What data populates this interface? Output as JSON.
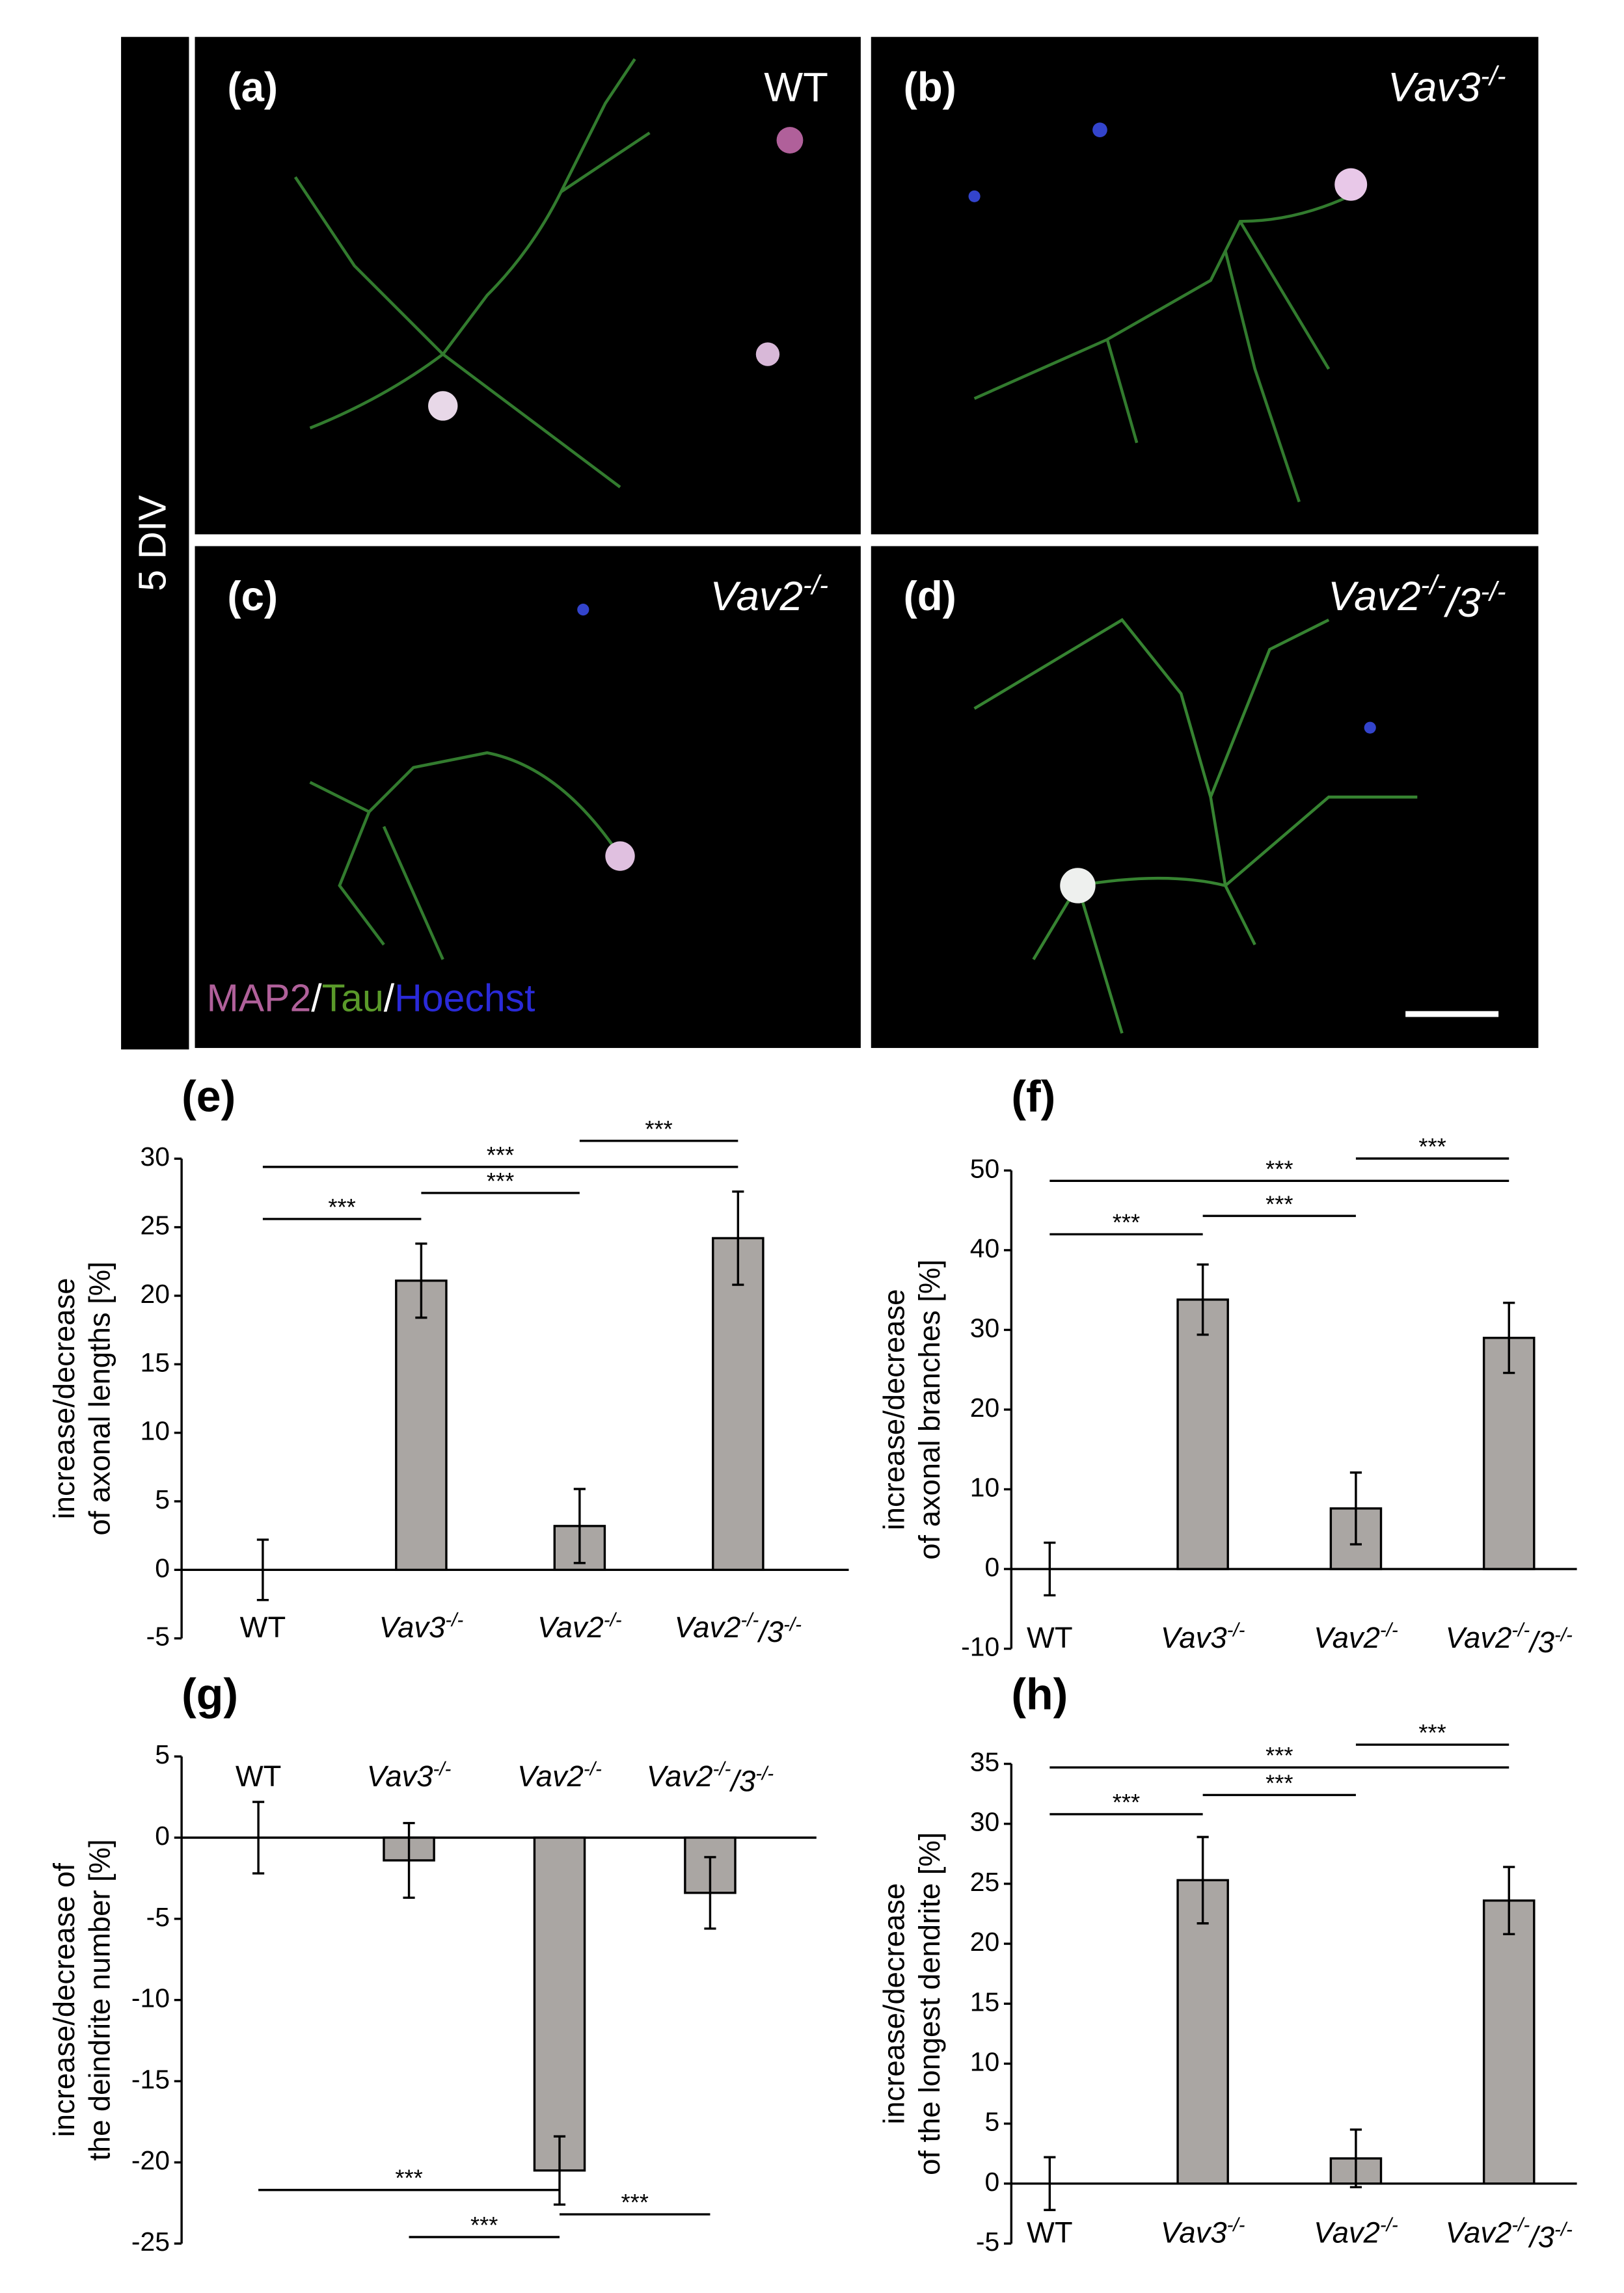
{
  "side_label": "5 DIV",
  "panels": [
    {
      "label": "(a)",
      "name": "WT"
    },
    {
      "label": "(b)",
      "name": "Vav3-/-"
    },
    {
      "label": "(c)",
      "name": "Vav2-/-"
    },
    {
      "label": "(d)",
      "name": "Vav2-/-/3-/-"
    }
  ],
  "stain_legend": {
    "parts": [
      "MAP2",
      "/",
      "Tau",
      "/",
      "Hoechst"
    ],
    "colors": [
      "#b0609a",
      "#ffffff",
      "#5a9a2a",
      "#ffffff",
      "#2a2ad8"
    ]
  },
  "chart_data": [
    {
      "type": "bar",
      "title": "(e)",
      "ylabel": [
        "increase/decrease",
        "of axonal lengths [%]"
      ],
      "categories": [
        "WT",
        "Vav3-/-",
        "Vav2-/-",
        "Vav2-/-/3-/-"
      ],
      "values": [
        0,
        21.1,
        3.2,
        24.2
      ],
      "errors": [
        2.2,
        2.7,
        2.7,
        3.4
      ],
      "color": "#aaa6a3",
      "ylim": [
        -5,
        30
      ],
      "yticks": [
        -5,
        0,
        5,
        10,
        15,
        20,
        25,
        30
      ],
      "category_label_position": "bottom",
      "significance": [
        {
          "label": "***",
          "from": 0,
          "to": 1,
          "y": 25.6
        },
        {
          "label": "***",
          "from": 1,
          "to": 2,
          "y": 27.5
        },
        {
          "label": "***",
          "from": 0,
          "to": 3,
          "y": 29.4
        },
        {
          "label": "***",
          "from": 2,
          "to": 3,
          "y": 31.3
        }
      ]
    },
    {
      "type": "bar",
      "title": "(f)",
      "ylabel": [
        "increase/decrease",
        "of axonal branches [%]"
      ],
      "categories": [
        "WT",
        "Vav3-/-",
        "Vav2-/-",
        "Vav2-/-/3-/-"
      ],
      "values": [
        0,
        33.8,
        7.6,
        29.0
      ],
      "errors": [
        3.3,
        4.4,
        4.5,
        4.4
      ],
      "color": "#aaa6a3",
      "ylim": [
        -10,
        50
      ],
      "yticks": [
        -10,
        0,
        10,
        20,
        30,
        40,
        50
      ],
      "category_label_position": "bottom",
      "significance": [
        {
          "label": "***",
          "from": 0,
          "to": 1,
          "y": 42
        },
        {
          "label": "***",
          "from": 1,
          "to": 2,
          "y": 44.3
        },
        {
          "label": "***",
          "from": 0,
          "to": 3,
          "y": 48.7
        },
        {
          "label": "***",
          "from": 2,
          "to": 3,
          "y": 51.5
        }
      ]
    },
    {
      "type": "bar",
      "title": "(g)",
      "ylabel": [
        "increase/decrease of",
        "the deindrite number [%]"
      ],
      "categories": [
        "WT",
        "Vav3-/-",
        "Vav2-/-",
        "Vav2-/-/3-/-"
      ],
      "values": [
        0,
        -1.4,
        -20.5,
        -3.4
      ],
      "errors": [
        2.2,
        2.3,
        2.1,
        2.2
      ],
      "color": "#aaa6a3",
      "ylim": [
        -25,
        5
      ],
      "yticks": [
        -25,
        -20,
        -15,
        -10,
        -5,
        0,
        5
      ],
      "category_label_position": "top",
      "significance": [
        {
          "label": "***",
          "from": 0,
          "to": 2,
          "y": -21.7
        },
        {
          "label": "***",
          "from": 2,
          "to": 3,
          "y": -23.2
        },
        {
          "label": "***",
          "from": 1,
          "to": 2,
          "y": -24.6
        }
      ]
    },
    {
      "type": "bar",
      "title": "(h)",
      "ylabel": [
        "increase/decrease",
        "of the longest dendrite [%]"
      ],
      "categories": [
        "WT",
        "Vav3-/-",
        "Vav2-/-",
        "Vav2-/-/3-/-"
      ],
      "values": [
        0,
        25.3,
        2.1,
        23.6
      ],
      "errors": [
        2.2,
        3.6,
        2.4,
        2.8
      ],
      "color": "#aaa6a3",
      "ylim": [
        -5,
        35
      ],
      "yticks": [
        -5,
        0,
        5,
        10,
        15,
        20,
        25,
        30,
        35
      ],
      "category_label_position": "bottom",
      "significance": [
        {
          "label": "***",
          "from": 0,
          "to": 1,
          "y": 30.8
        },
        {
          "label": "***",
          "from": 1,
          "to": 2,
          "y": 32.4
        },
        {
          "label": "***",
          "from": 0,
          "to": 3,
          "y": 34.7
        },
        {
          "label": "***",
          "from": 2,
          "to": 3,
          "y": 36.6
        }
      ]
    }
  ]
}
